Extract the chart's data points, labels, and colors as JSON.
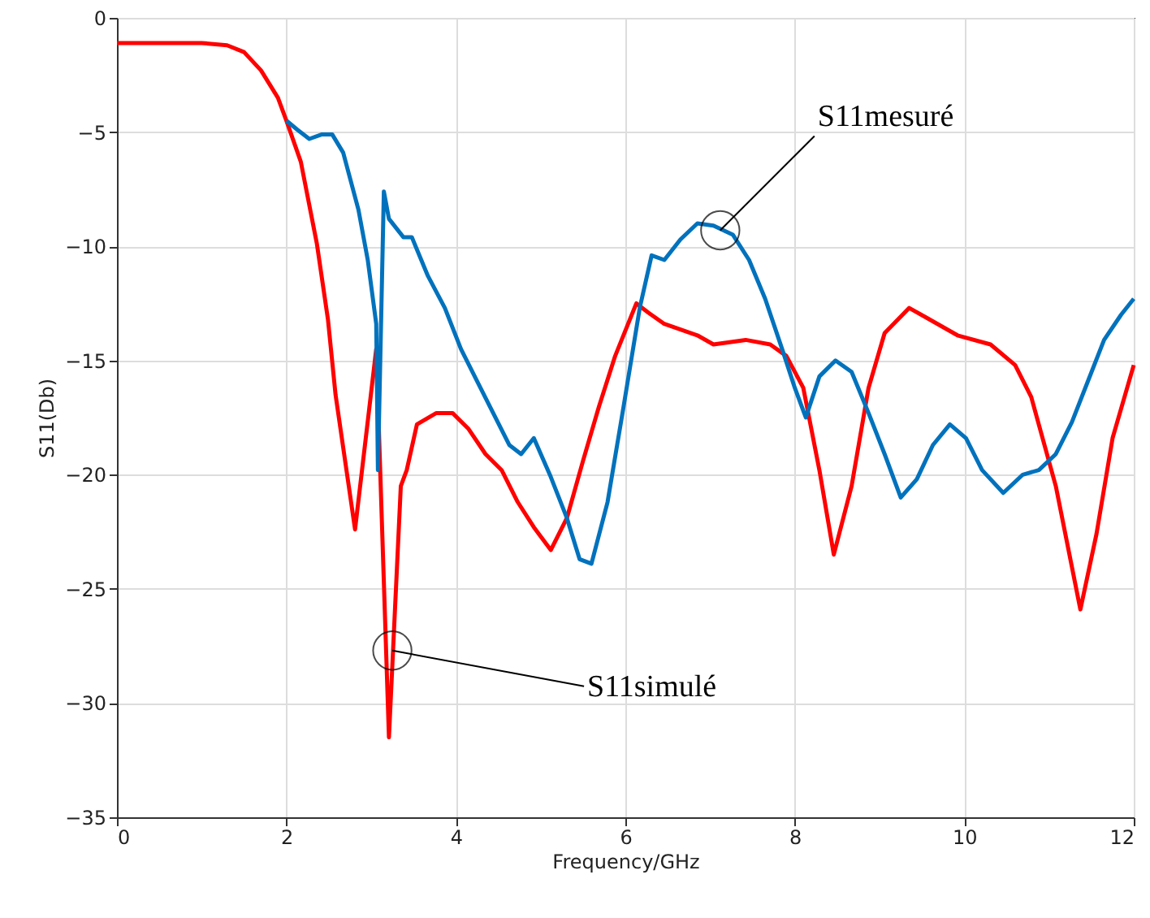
{
  "chart_data": {
    "type": "line",
    "xlabel": "Frequency/GHz",
    "ylabel": "S11(Db)",
    "xlim": [
      0,
      12
    ],
    "ylim": [
      -35,
      0
    ],
    "xticks": [
      0,
      2,
      4,
      6,
      8,
      10,
      12
    ],
    "yticks": [
      -35,
      -30,
      -25,
      -20,
      -15,
      -10,
      -5,
      0
    ],
    "grid": true,
    "series": [
      {
        "color": "#ff0000",
        "x": [
          0,
          0.5,
          1.0,
          1.3,
          1.5,
          1.7,
          1.9,
          2.0,
          2.17,
          2.36,
          2.49,
          2.58,
          2.81,
          3.06,
          3.21,
          3.35,
          3.42,
          3.54,
          3.77,
          3.96,
          4.15,
          4.35,
          4.54,
          4.73,
          4.92,
          5.12,
          5.31,
          5.5,
          5.69,
          5.88,
          6.13,
          6.27,
          6.46,
          6.85,
          7.04,
          7.42,
          7.71,
          7.9,
          8.1,
          8.29,
          8.46,
          8.67,
          8.87,
          9.06,
          9.35,
          9.54,
          9.92,
          10.31,
          10.6,
          10.79,
          11.08,
          11.37,
          11.56,
          11.75,
          12
        ],
        "values": [
          -1.1,
          -1.1,
          -1.1,
          -1.2,
          -1.5,
          -2.3,
          -3.5,
          -4.5,
          -6.3,
          -9.9,
          -13.2,
          -16.5,
          -22.4,
          -14.5,
          -31.5,
          -20.5,
          -19.8,
          -17.8,
          -17.3,
          -17.3,
          -18,
          -19.1,
          -19.8,
          -21.2,
          -22.3,
          -23.3,
          -21.9,
          -19.4,
          -17,
          -14.8,
          -12.5,
          -12.9,
          -13.4,
          -13.9,
          -14.3,
          -14.1,
          -14.3,
          -14.8,
          -16.2,
          -19.8,
          -23.5,
          -20.5,
          -16.2,
          -13.8,
          -12.7,
          -13.1,
          -13.9,
          -14.3,
          -15.2,
          -16.6,
          -20.5,
          -25.9,
          -22.6,
          -18.4,
          -15.2
        ]
      },
      {
        "color": "#0072bd",
        "x": [
          2.0,
          2.13,
          2.27,
          2.42,
          2.54,
          2.67,
          2.85,
          2.96,
          3.06,
          3.08,
          3.15,
          3.21,
          3.38,
          3.48,
          3.67,
          3.87,
          4.06,
          4.25,
          4.44,
          4.63,
          4.77,
          4.92,
          5.12,
          5.31,
          5.46,
          5.6,
          5.79,
          5.98,
          6.17,
          6.31,
          6.46,
          6.65,
          6.85,
          7.04,
          7.27,
          7.46,
          7.65,
          7.85,
          8.0,
          8.13,
          8.29,
          8.48,
          8.67,
          8.87,
          9.06,
          9.25,
          9.44,
          9.63,
          9.83,
          10.02,
          10.21,
          10.46,
          10.69,
          10.88,
          11.08,
          11.27,
          11.46,
          11.65,
          11.85,
          12
        ],
        "values": [
          -4.5,
          -4.9,
          -5.3,
          -5.1,
          -5.1,
          -5.9,
          -8.4,
          -10.6,
          -13.4,
          -19.8,
          -7.6,
          -8.8,
          -9.6,
          -9.6,
          -11.3,
          -12.7,
          -14.5,
          -15.9,
          -17.3,
          -18.7,
          -19.1,
          -18.4,
          -20.1,
          -21.9,
          -23.7,
          -23.9,
          -21.2,
          -17,
          -12.7,
          -10.4,
          -10.6,
          -9.7,
          -9,
          -9.1,
          -9.5,
          -10.6,
          -12.3,
          -14.5,
          -16.2,
          -17.5,
          -15.7,
          -15,
          -15.5,
          -17.3,
          -19.1,
          -21,
          -20.2,
          -18.7,
          -17.8,
          -18.4,
          -19.8,
          -20.8,
          -20,
          -19.8,
          -19.1,
          -17.7,
          -15.9,
          -14.1,
          -13,
          -12.3
        ]
      }
    ],
    "annotations": [
      {
        "text": "S11mesuré",
        "x": 7.12,
        "y": -9.3
      },
      {
        "text": "S11simulé",
        "x": 3.25,
        "y": -27.7
      }
    ]
  }
}
